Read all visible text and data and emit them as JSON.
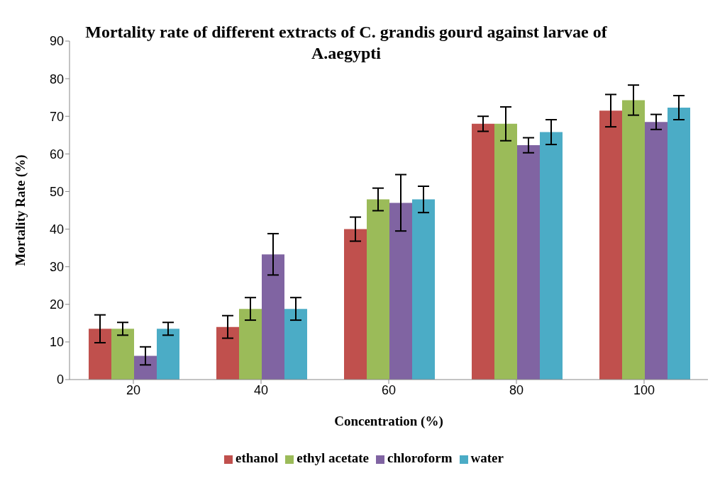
{
  "chart_data": {
    "type": "bar",
    "title": "Mortality rate of different extracts of C. grandis gourd against larvae of A.aegypti",
    "xlabel": "Concentration (%)",
    "ylabel": "Mortality Rate (%)",
    "categories": [
      "20",
      "40",
      "60",
      "80",
      "100"
    ],
    "series": [
      {
        "name": "ethanol",
        "color": "#c0504d",
        "values": [
          13.5,
          14,
          40,
          68,
          71.5
        ],
        "errors": [
          3.7,
          3,
          3.2,
          2,
          4.3
        ]
      },
      {
        "name": "ethyl acetate",
        "color": "#9bbb59",
        "values": [
          13.5,
          18.8,
          47.9,
          68,
          74.3
        ],
        "errors": [
          1.7,
          3,
          3,
          4.5,
          4
        ]
      },
      {
        "name": "chloroform",
        "color": "#8064a2",
        "values": [
          6.3,
          33.3,
          47,
          62.3,
          68.5
        ],
        "errors": [
          2.4,
          5.5,
          7.5,
          2,
          2
        ]
      },
      {
        "name": "water",
        "color": "#4bacc6",
        "values": [
          13.5,
          18.8,
          47.9,
          65.8,
          72.3
        ],
        "errors": [
          1.7,
          3,
          3.5,
          3.3,
          3.2
        ]
      }
    ],
    "ylim": [
      0,
      90
    ],
    "yticks": [
      0,
      10,
      20,
      30,
      40,
      50,
      60,
      70,
      80,
      90
    ],
    "grid": false,
    "legend": "bottom"
  }
}
